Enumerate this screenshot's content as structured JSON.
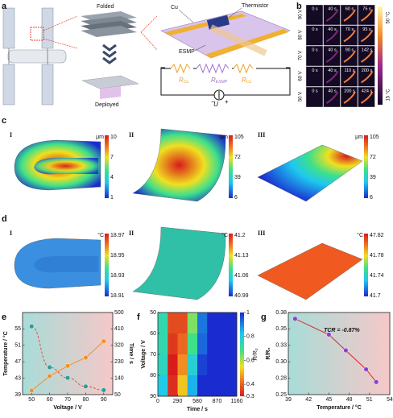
{
  "panel_labels": [
    "a",
    "b",
    "c",
    "d",
    "e",
    "f",
    "g"
  ],
  "panel_a": {
    "folded": "Folded",
    "deployed": "Deployed",
    "cu": "Cu",
    "thermistor": "Thermistor",
    "esmp": "ESMP",
    "resistors": [
      {
        "symbol": "R",
        "sub": "Cu"
      },
      {
        "symbol": "R",
        "sub": "ESMP"
      },
      {
        "symbol": "R",
        "sub": "Cu"
      }
    ],
    "voltage": "U",
    "minus": "−",
    "plus": "+"
  },
  "panel_b": {
    "rows": [
      {
        "voltage": "90 V",
        "times": [
          "0 s",
          "40 s",
          "60 s",
          "75 s"
        ]
      },
      {
        "voltage": "80 V",
        "times": [
          "0 s",
          "40 s",
          "70 s",
          "95 s"
        ]
      },
      {
        "voltage": "70 V",
        "times": [
          "0 s",
          "40 s",
          "90 s",
          "142 s"
        ]
      },
      {
        "voltage": "60 V",
        "times": [
          "0 s",
          "40 s",
          "110 s",
          "200 s"
        ]
      },
      {
        "voltage": "50 V",
        "times": [
          "0 s",
          "40 s",
          "200 s",
          "424 s"
        ]
      }
    ],
    "colorbar": [
      "50 °C",
      "15 °C"
    ]
  },
  "panel_c": {
    "subpanels": [
      {
        "label": "I",
        "unit": "μm",
        "ticks": [
          10,
          7,
          4,
          1
        ]
      },
      {
        "label": "II",
        "unit": "μm",
        "ticks": [
          105,
          72,
          39,
          6
        ]
      },
      {
        "label": "III",
        "unit": "μm",
        "ticks": [
          105,
          72,
          39,
          6
        ]
      }
    ]
  },
  "panel_d": {
    "subpanels": [
      {
        "label": "I",
        "unit": "°C",
        "ticks": [
          18.97,
          18.95,
          18.93,
          18.91
        ]
      },
      {
        "label": "II",
        "unit": "°C",
        "ticks": [
          41.2,
          41.13,
          41.06,
          40.99
        ]
      },
      {
        "label": "III",
        "unit": "°C",
        "ticks": [
          47.82,
          41.78,
          41.74,
          41.7
        ]
      }
    ]
  },
  "chart_data": [
    {
      "type": "line",
      "xlabel": "Voltage / V",
      "ylabel": "Temperature / °C",
      "y2label": "Time / s",
      "x": [
        50,
        60,
        70,
        80,
        90
      ],
      "xlim": [
        45,
        95
      ],
      "xticks": [
        50,
        60,
        70,
        80,
        90
      ],
      "ylim": [
        39,
        59
      ],
      "yticks": [
        39,
        43,
        47,
        51,
        55
      ],
      "y2lim": [
        50,
        500
      ],
      "y2ticks": [
        50,
        140,
        230,
        320,
        410,
        500
      ],
      "series": [
        {
          "color": "#f0902a",
          "values": [
            40,
            43.5,
            46,
            48,
            52
          ]
        },
        {
          "color": "#2a9d9a",
          "axis": "y2",
          "values": [
            424,
            200,
            142,
            95,
            75
          ]
        }
      ]
    },
    {
      "type": "heatmap",
      "xlabel": "Time / s",
      "ylabel": "Voltage / V",
      "colorbar_label": "R/R₀",
      "xbins": [
        0,
        145,
        290,
        435,
        580,
        725,
        870,
        1015,
        1160
      ],
      "ybins": [
        50,
        60,
        70,
        80,
        90
      ],
      "values": [
        [
          0.7,
          0.35,
          0.35,
          0.6,
          0.9,
          1,
          1,
          1
        ],
        [
          0.7,
          0.33,
          0.38,
          0.65,
          0.92,
          1,
          1,
          1
        ],
        [
          0.72,
          0.3,
          0.42,
          0.75,
          0.97,
          1,
          1,
          1
        ],
        [
          0.78,
          0.32,
          0.48,
          0.82,
          1,
          1,
          1,
          1
        ]
      ],
      "xlim": [
        0,
        1160
      ],
      "xticks": [
        0,
        290,
        580,
        870,
        1160
      ],
      "ylim": [
        50,
        90
      ],
      "yticks": [
        50,
        60,
        70,
        80,
        90
      ],
      "zlim": [
        0.3,
        1
      ],
      "zticks": [
        0.3,
        0.4,
        0.6,
        0.8,
        1
      ]
    },
    {
      "type": "line",
      "xlabel": "Temperature / °C",
      "ylabel": "R/R₀",
      "annotation": "TCR = -0.87%",
      "x": [
        40,
        45,
        47.5,
        50.5,
        52
      ],
      "xlim": [
        39,
        54
      ],
      "xticks": [
        39,
        42,
        45,
        48,
        51,
        54
      ],
      "ylim": [
        0.25,
        0.38
      ],
      "yticks": [
        {
          "value": 0.25,
          "label": "0.25"
        },
        {
          "value": 0.276,
          "label": "0.28"
        },
        {
          "value": 0.302,
          "label": "0.30"
        },
        {
          "value": 0.328,
          "label": "0.33"
        },
        {
          "value": 0.354,
          "label": "0.35"
        },
        {
          "value": 0.38,
          "label": "0.38"
        }
      ],
      "series": [
        {
          "color": "#d42a2a",
          "marker_color": "#8a3fd0",
          "values": [
            0.37,
            0.345,
            0.32,
            0.29,
            0.27
          ]
        }
      ]
    }
  ]
}
